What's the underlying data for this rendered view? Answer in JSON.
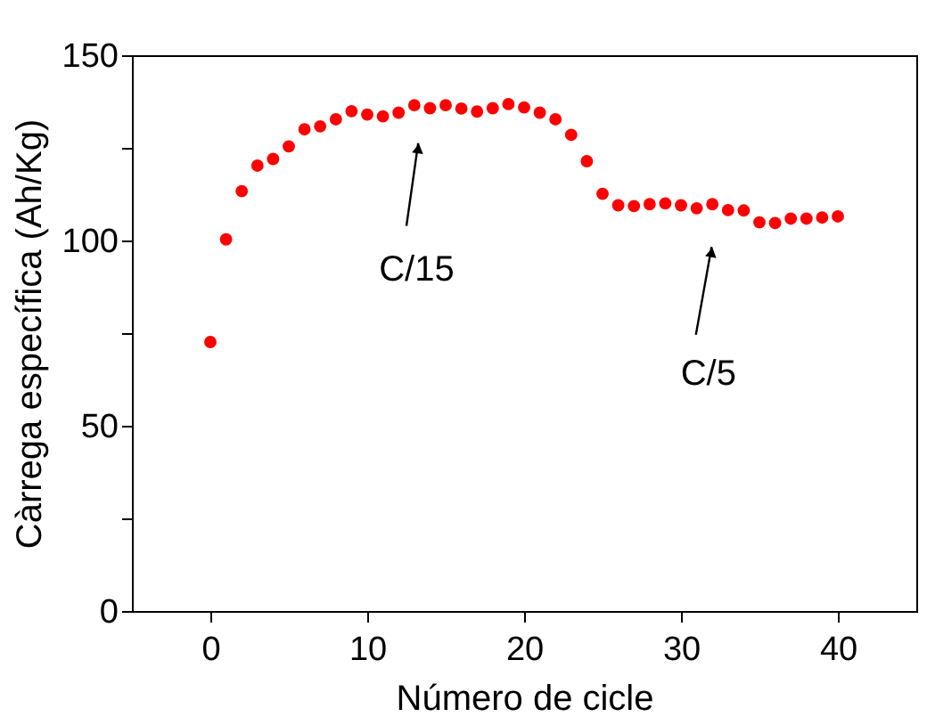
{
  "chart_data": {
    "type": "scatter",
    "xlabel": "Número de cicle",
    "ylabel": "Càrrega específica (Ah/Kg)",
    "x": [
      0,
      1,
      2,
      3,
      4,
      5,
      6,
      7,
      8,
      9,
      10,
      11,
      12,
      13,
      14,
      15,
      16,
      17,
      18,
      19,
      20,
      21,
      22,
      23,
      24,
      25,
      26,
      27,
      28,
      29,
      30,
      31,
      32,
      33,
      34,
      35,
      36,
      37,
      38,
      39,
      40
    ],
    "series": [
      {
        "color": "#ff0000",
        "values": [
          72.6,
          100.3,
          113.3,
          120.2,
          122,
          125.4,
          130,
          130.8,
          132.7,
          134.9,
          134,
          133.5,
          134.5,
          136.5,
          135.7,
          136.5,
          135.6,
          134.8,
          135.7,
          136.8,
          135.9,
          134.5,
          132.7,
          128.5,
          121.4,
          112.6,
          109.5,
          109.3,
          109.8,
          110,
          109.5,
          108.7,
          109.8,
          108.2,
          108.1,
          104.9,
          104.7,
          105.9,
          105.9,
          106.2,
          106.5
        ]
      }
    ],
    "xlim": [
      -5,
      45
    ],
    "ylim": [
      0,
      150
    ],
    "xticks": [
      0,
      10,
      20,
      30,
      40
    ],
    "yticks": [
      0,
      {
        "value": 25,
        "label": null
      },
      50,
      {
        "value": 75,
        "label": null
      },
      100,
      {
        "value": 125,
        "label": null
      },
      150
    ],
    "grid": false,
    "legend": false,
    "marker": "circle",
    "annotations": [
      "C/15",
      "C/5"
    ]
  }
}
